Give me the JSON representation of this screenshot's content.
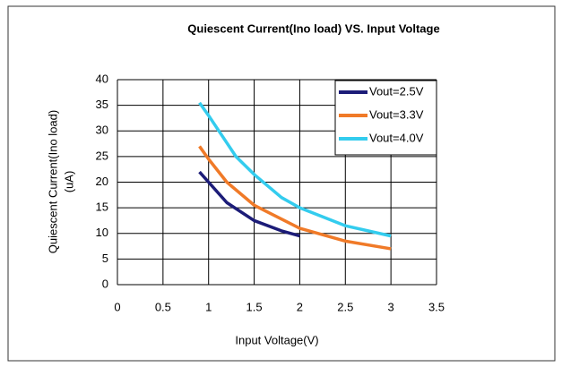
{
  "chart_data": {
    "type": "line",
    "title": "Quiescent Current(Ino load) VS. Input Voltage",
    "xlabel": "Input Voltage(V)",
    "ylabel": [
      "Quiescent Current(Ino load)",
      "(uA)"
    ],
    "xlim": [
      0,
      3.5
    ],
    "xticks": [
      0,
      0.5,
      1,
      1.5,
      2,
      2.5,
      3,
      3.5
    ],
    "ylim": [
      0,
      40
    ],
    "yticks": [
      0,
      5,
      10,
      15,
      20,
      25,
      30,
      35,
      40
    ],
    "grid": true,
    "legend": "upper right",
    "series": [
      {
        "name": "Vout=2.5V",
        "color": "#1c1c78",
        "x": [
          0.9,
          1.0,
          1.2,
          1.5,
          1.8,
          2.0
        ],
        "values": [
          22,
          20,
          16,
          12.5,
          10.5,
          9.5
        ]
      },
      {
        "name": "Vout=3.3V",
        "color": "#f07a28",
        "x": [
          0.9,
          1.0,
          1.2,
          1.5,
          2.0,
          2.5,
          3.0
        ],
        "values": [
          27,
          24.5,
          20,
          15.5,
          11,
          8.5,
          7
        ]
      },
      {
        "name": "Vout=4.0V",
        "color": "#33ccee",
        "x": [
          0.9,
          1.0,
          1.3,
          1.5,
          1.8,
          2.0,
          2.5,
          3.0
        ],
        "values": [
          35.5,
          33,
          25,
          21.5,
          17,
          15,
          11.5,
          9.5
        ]
      }
    ]
  }
}
